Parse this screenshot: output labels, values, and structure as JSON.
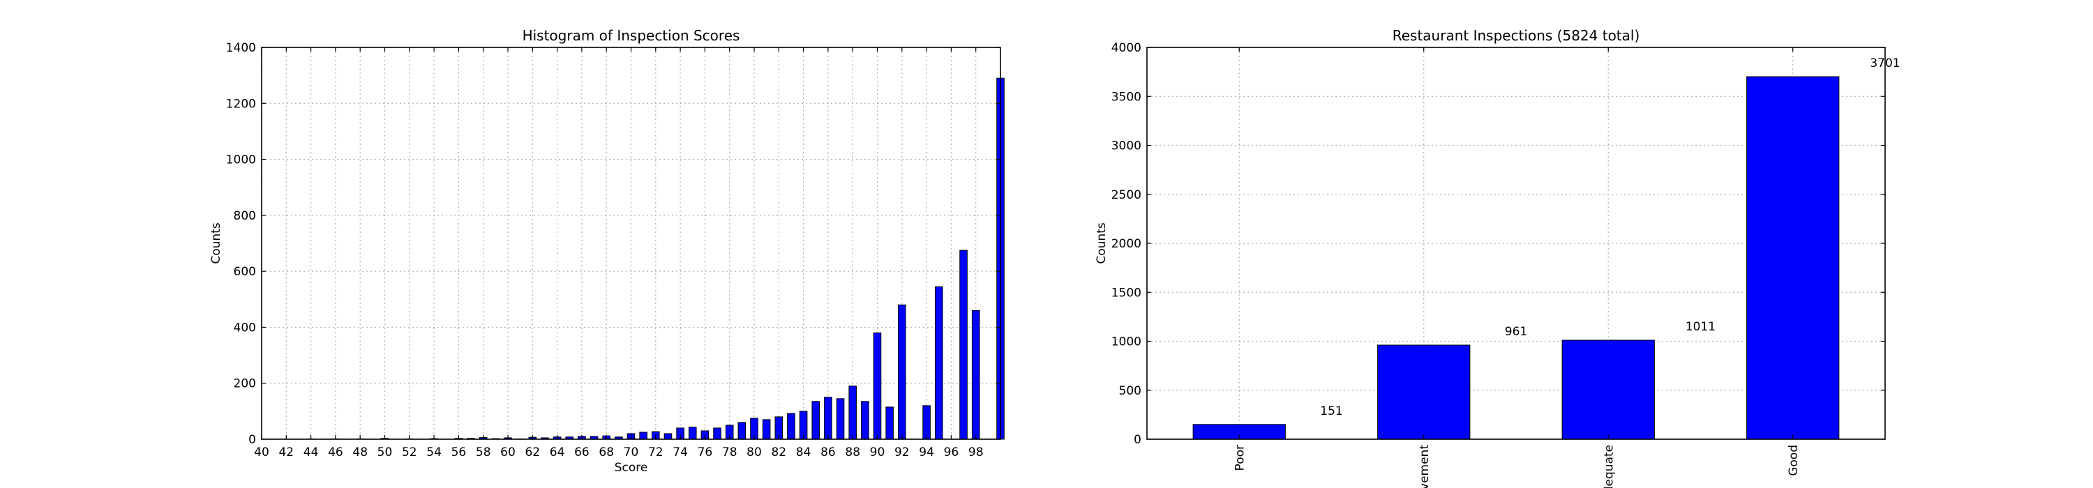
{
  "chart_data": [
    {
      "type": "bar",
      "title": "Histogram of Inspection Scores",
      "xlabel": "Score",
      "ylabel": "Counts",
      "xlim": [
        40,
        100
      ],
      "ylim": [
        0,
        1400
      ],
      "x_ticks": [
        "40",
        "42",
        "44",
        "46",
        "48",
        "50",
        "52",
        "54",
        "56",
        "58",
        "60",
        "62",
        "64",
        "66",
        "68",
        "70",
        "72",
        "74",
        "76",
        "78",
        "80",
        "82",
        "84",
        "86",
        "88",
        "90",
        "92",
        "94",
        "96",
        "98"
      ],
      "y_ticks": [
        "0",
        "200",
        "400",
        "600",
        "800",
        "1000",
        "1200",
        "1400"
      ],
      "grid": true,
      "bar_color": "#0000ff",
      "x": [
        40,
        41,
        42,
        43,
        44,
        45,
        46,
        47,
        48,
        49,
        50,
        51,
        52,
        53,
        54,
        55,
        56,
        57,
        58,
        59,
        60,
        61,
        62,
        63,
        64,
        65,
        66,
        67,
        68,
        69,
        70,
        71,
        72,
        73,
        74,
        75,
        76,
        77,
        78,
        79,
        80,
        81,
        82,
        83,
        84,
        85,
        86,
        87,
        88,
        89,
        90,
        91,
        92,
        93,
        94,
        95,
        96,
        97,
        98,
        99,
        100
      ],
      "values": [
        0,
        0,
        0,
        0,
        1,
        0,
        1,
        0,
        1,
        0,
        3,
        0,
        1,
        0,
        2,
        0,
        3,
        3,
        6,
        2,
        5,
        1,
        7,
        5,
        8,
        8,
        10,
        10,
        12,
        8,
        20,
        25,
        27,
        20,
        40,
        43,
        30,
        40,
        50,
        60,
        75,
        70,
        80,
        92,
        100,
        135,
        150,
        145,
        190,
        135,
        380,
        115,
        480,
        0,
        120,
        545,
        0,
        675,
        460,
        0,
        1290
      ]
    },
    {
      "type": "bar",
      "title": "Restaurant Inspections (5824 total)",
      "xlabel": "",
      "ylabel": "Counts",
      "ylim": [
        0,
        4000
      ],
      "y_ticks": [
        "0",
        "500",
        "1000",
        "1500",
        "2000",
        "2500",
        "3000",
        "3500",
        "4000"
      ],
      "grid": true,
      "bar_color": "#0000ff",
      "categories": [
        "Poor",
        "vement",
        "dequate",
        "Good"
      ],
      "values": [
        151,
        961,
        1011,
        3701
      ],
      "data_labels": [
        "151",
        "961",
        "1011",
        "3701"
      ]
    }
  ]
}
